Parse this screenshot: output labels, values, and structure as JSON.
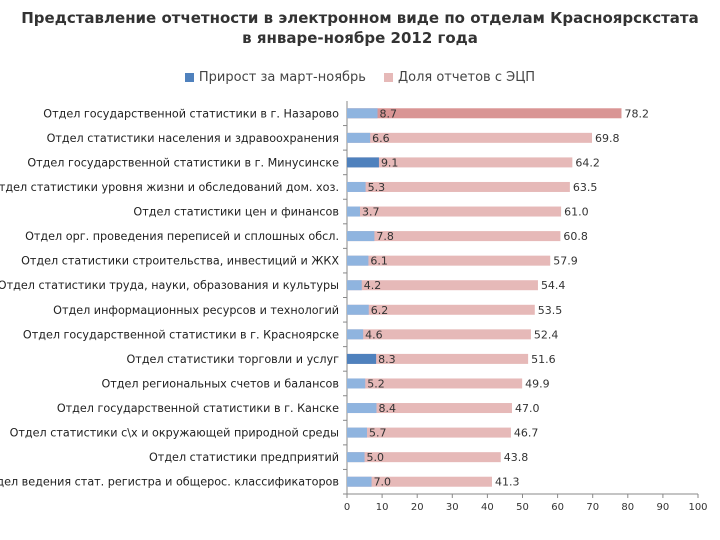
{
  "chart_data": {
    "type": "bar",
    "orientation": "horizontal",
    "title_line1": "Представление отчетности в электронном виде по отделам Красноярскстата",
    "title_line2": "в январе-ноябре 2012 года",
    "legend_position": "top",
    "xlim": [
      0,
      100
    ],
    "x_ticks": [
      "0",
      "10",
      "20",
      "30",
      "40",
      "50",
      "60",
      "70",
      "80",
      "90",
      "100"
    ],
    "categories": [
      "Отдел государственной статистики в г. Назарово",
      "Отдел статистики населения и здравоохранения",
      "Отдел государственной статистики в г. Минусинске",
      "Отдел статистики уровня жизни и обследований дом. хоз.",
      "Отдел статистики цен и финансов",
      "Отдел орг. проведения переписей и сплошных обсл.",
      "Отдел статистики строительства, инвестиций и ЖКХ",
      "Отдел статистики труда, науки, образования и культуры",
      "Отдел информационных ресурсов и технологий",
      "Отдел государственной статистики в г. Красноярске",
      "Отдел статистики торговли и услуг",
      "Отдел региональных счетов и балансов",
      "Отдел государственной статистики в г. Канске",
      "Отдел статистики с\\х и окружающей природной среды",
      "Отдел статистики предприятий",
      "Отдел ведения стат. регистра и общерос. классификаторов"
    ],
    "series": [
      {
        "name": "Прирост за март-ноябрь",
        "color": "#8fb4df",
        "highlight_color": "#4f81bd",
        "highlighted": [
          false,
          false,
          true,
          false,
          false,
          false,
          false,
          false,
          false,
          false,
          true,
          false,
          false,
          false,
          false,
          false
        ],
        "values": [
          8.7,
          6.6,
          9.1,
          5.3,
          3.7,
          7.8,
          6.1,
          4.2,
          6.2,
          4.6,
          8.3,
          5.2,
          8.4,
          5.7,
          5.0,
          7.0
        ],
        "labels": [
          "8.7",
          "6.6",
          "9.1",
          "5.3",
          "3.7",
          "7.8",
          "6.1",
          "4.2",
          "6.2",
          "4.6",
          "8.3",
          "5.2",
          "8.4",
          "5.7",
          "5.0",
          "7.0"
        ]
      },
      {
        "name": "Доля отчетов с ЭЦП",
        "color": "#e6b9b8",
        "highlight_color": "#d99594",
        "highlighted": [
          true,
          false,
          false,
          false,
          false,
          false,
          false,
          false,
          false,
          false,
          false,
          false,
          false,
          false,
          false,
          false
        ],
        "values": [
          78.2,
          69.8,
          64.2,
          63.5,
          61.0,
          60.8,
          57.9,
          54.4,
          53.5,
          52.4,
          51.6,
          49.9,
          47.0,
          46.7,
          43.8,
          41.3
        ],
        "labels": [
          "78.2",
          "69.8",
          "64.2",
          "63.5",
          "61.0",
          "60.8",
          "57.9",
          "54.4",
          "53.5",
          "52.4",
          "51.6",
          "49.9",
          "47.0",
          "46.7",
          "43.8",
          "41.3"
        ]
      }
    ]
  }
}
